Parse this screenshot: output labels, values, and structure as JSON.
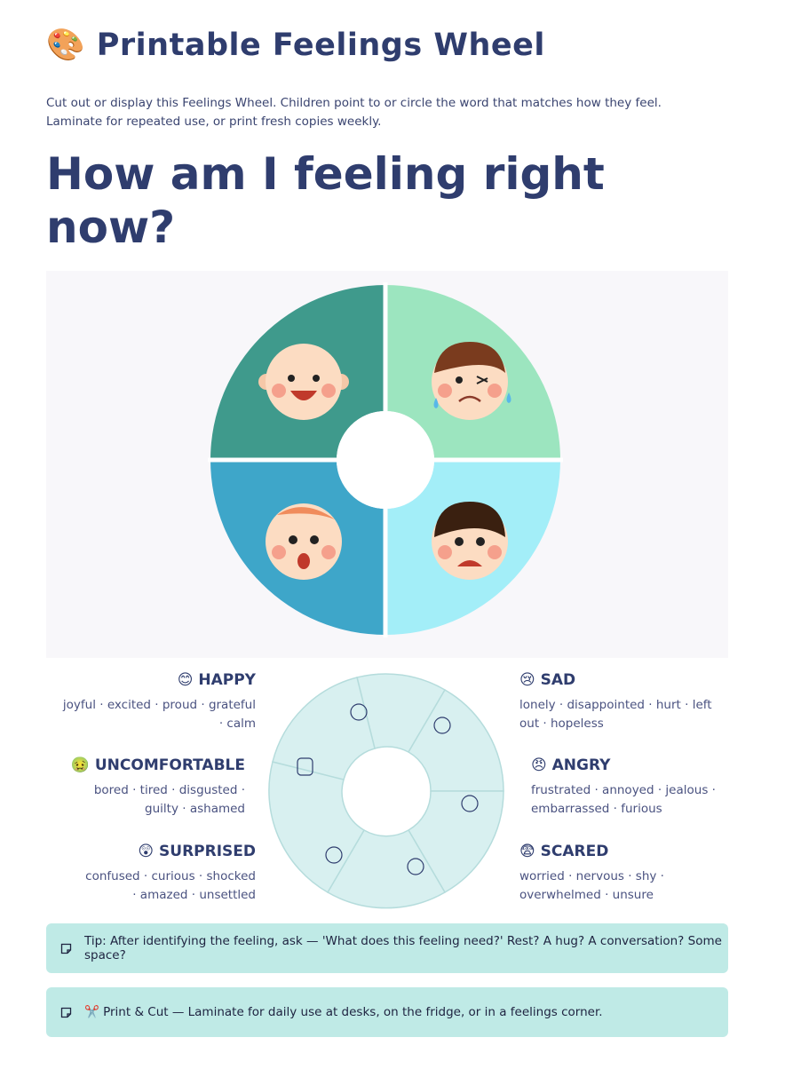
{
  "header": {
    "title": "🎨 Printable Feelings Wheel",
    "intro": "Cut out or display this Feelings Wheel. Children point to or circle the word that matches how they feel. Laminate for repeated use, or print fresh copies weekly.",
    "heading": "How am I feeling right now?"
  },
  "feelings": [
    {
      "name": "😊 HAPPY",
      "words": "joyful · excited · proud · grateful · calm"
    },
    {
      "name": "🤢 UNCOMFORTABLE",
      "words": "bored · tired · disgusted · guilty · ashamed"
    },
    {
      "name": "😲 SURPRISED",
      "words": "confused · curious · shocked · amazed · unsettled"
    },
    {
      "name": "😢 SAD",
      "words": "lonely · disappointed · hurt · left out · hopeless"
    },
    {
      "name": "😠 ANGRY",
      "words": "frustrated · annoyed · jealous · embarrassed · furious"
    },
    {
      "name": "😨 SCARED",
      "words": "worried · nervous · shy · overwhelmed · unsure"
    }
  ],
  "tips": [
    "Tip: After identifying the feeling, ask — 'What does this feeling need?' Rest? A hug? A conversation? Some space?",
    "✂️ Print & Cut — Laminate for daily use at desks, on the fridge, or in a feelings corner."
  ]
}
